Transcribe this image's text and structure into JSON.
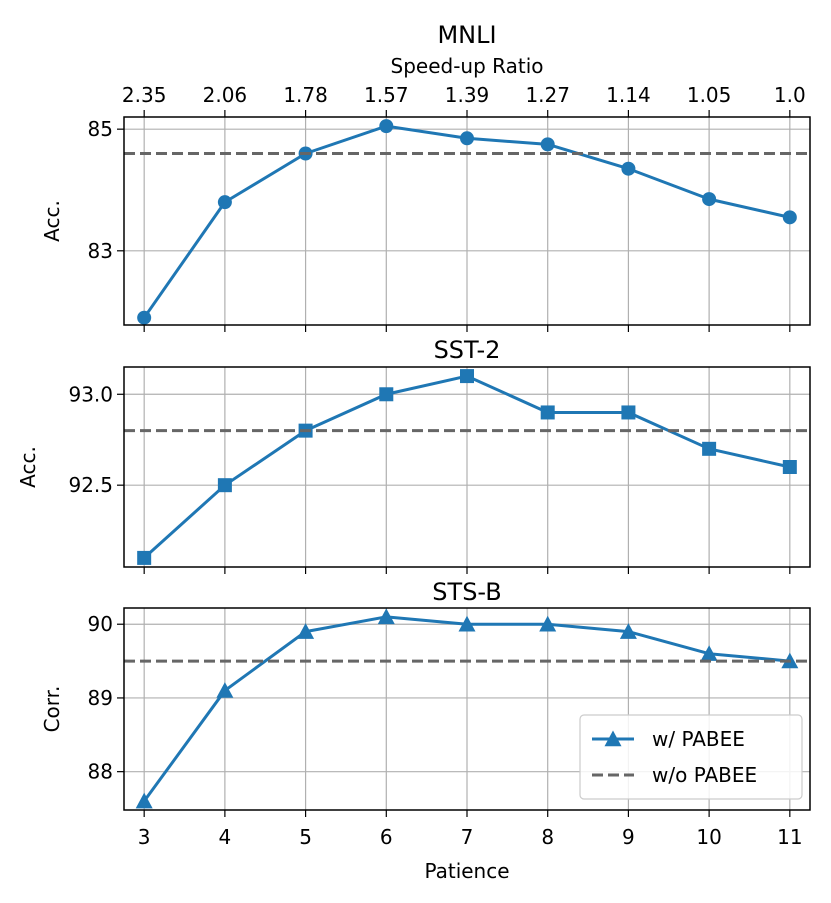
{
  "colors": {
    "series": "#1f77b4",
    "baseline": "#666666",
    "grid": "#b0b0b0"
  },
  "top_axis": {
    "label": "Speed-up Ratio",
    "tick_labels": [
      "2.35",
      "2.06",
      "1.78",
      "1.57",
      "1.39",
      "1.27",
      "1.14",
      "1.05",
      "1.0"
    ]
  },
  "x_axis": {
    "label": "Patience",
    "ticks": [
      3,
      4,
      5,
      6,
      7,
      8,
      9,
      10,
      11
    ],
    "xlim": [
      2.75,
      11.25
    ]
  },
  "legend": {
    "placement": "lower-right",
    "items": [
      {
        "label": "w/ PABEE",
        "style": "line-triangle"
      },
      {
        "label": "w/o PABEE",
        "style": "dashed"
      }
    ]
  },
  "chart_data": [
    {
      "type": "line",
      "title": "MNLI",
      "ylabel": "Acc.",
      "x": [
        3,
        4,
        5,
        6,
        7,
        8,
        9,
        10,
        11
      ],
      "series": [
        {
          "name": "w/ PABEE",
          "marker": "circle",
          "values": [
            81.9,
            83.8,
            84.6,
            85.05,
            84.85,
            84.75,
            84.35,
            83.85,
            83.55
          ]
        },
        {
          "name": "w/o PABEE",
          "marker": "none",
          "dashed": true,
          "values": [
            84.6,
            84.6,
            84.6,
            84.6,
            84.6,
            84.6,
            84.6,
            84.6,
            84.6
          ]
        }
      ],
      "yticks": [
        83,
        85
      ],
      "ylim": [
        81.78,
        85.2
      ],
      "grid": true
    },
    {
      "type": "line",
      "title": "SST-2",
      "ylabel": "Acc.",
      "x": [
        3,
        4,
        5,
        6,
        7,
        8,
        9,
        10,
        11
      ],
      "series": [
        {
          "name": "w/ PABEE",
          "marker": "square",
          "values": [
            92.1,
            92.5,
            92.8,
            93.0,
            93.1,
            92.9,
            92.9,
            92.7,
            92.6
          ]
        },
        {
          "name": "w/o PABEE",
          "marker": "none",
          "dashed": true,
          "values": [
            92.8,
            92.8,
            92.8,
            92.8,
            92.8,
            92.8,
            92.8,
            92.8,
            92.8
          ]
        }
      ],
      "yticks": [
        92.5,
        93.0
      ],
      "ytick_labels": [
        "92.5",
        "93.0"
      ],
      "ylim": [
        92.05,
        93.15
      ],
      "grid": true
    },
    {
      "type": "line",
      "title": "STS-B",
      "ylabel": "Corr.",
      "x": [
        3,
        4,
        5,
        6,
        7,
        8,
        9,
        10,
        11
      ],
      "series": [
        {
          "name": "w/ PABEE",
          "marker": "triangle",
          "values": [
            87.6,
            89.1,
            89.9,
            90.1,
            90.0,
            90.0,
            89.9,
            89.6,
            89.5
          ]
        },
        {
          "name": "w/o PABEE",
          "marker": "none",
          "dashed": true,
          "values": [
            89.5,
            89.5,
            89.5,
            89.5,
            89.5,
            89.5,
            89.5,
            89.5,
            89.5
          ]
        }
      ],
      "yticks": [
        88,
        89,
        90
      ],
      "ylim": [
        87.48,
        90.22
      ],
      "grid": true
    }
  ]
}
